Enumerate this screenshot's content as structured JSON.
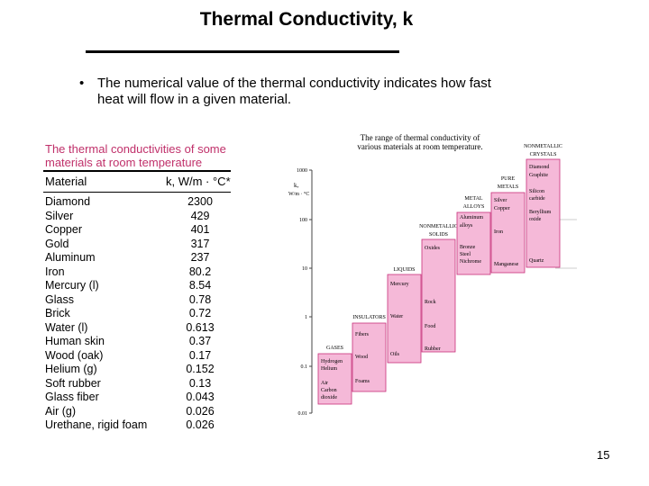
{
  "slide": {
    "title": "Thermal Conductivity, k",
    "bullet": "The numerical value of the thermal conductivity indicates how fast heat will flow in a given material.",
    "page_number": "15"
  },
  "table": {
    "caption_line1": "The thermal conductivities of some",
    "caption_line2": "materials at room temperature",
    "col_material": "Material",
    "col_k": "k, W/m · °C*",
    "rows": [
      {
        "material": "Diamond",
        "k": "2300"
      },
      {
        "material": "Silver",
        "k": "429"
      },
      {
        "material": "Copper",
        "k": "401"
      },
      {
        "material": "Gold",
        "k": "317"
      },
      {
        "material": "Aluminum",
        "k": "237"
      },
      {
        "material": "Iron",
        "k": "80.2"
      },
      {
        "material": "Mercury (l)",
        "k": "8.54"
      },
      {
        "material": "Glass",
        "k": "0.78"
      },
      {
        "material": "Brick",
        "k": "0.72"
      },
      {
        "material": "Water (l)",
        "k": "0.613"
      },
      {
        "material": "Human skin",
        "k": "0.37"
      },
      {
        "material": "Wood (oak)",
        "k": "0.17"
      },
      {
        "material": "Helium (g)",
        "k": "0.152"
      },
      {
        "material": "Soft rubber",
        "k": "0.13"
      },
      {
        "material": "Glass fiber",
        "k": "0.043"
      },
      {
        "material": "Air (g)",
        "k": "0.026"
      },
      {
        "material": "Urethane, rigid foam",
        "k": "0.026"
      }
    ]
  },
  "figure": {
    "title_line1": "The range of thermal conductivity of",
    "title_line2": "various materials at room temperature.",
    "axis_label_line1": "k,",
    "axis_label_line2": "W/m · °C",
    "ticks": [
      "1000",
      "100",
      "10",
      "1",
      "0.1",
      "0.01"
    ],
    "fill_color": "#f5b9d8",
    "border_color": "#c8307a",
    "categories": [
      {
        "heading": [
          "GASES"
        ],
        "items": [
          "Hydrogen",
          "Helium",
          "Air",
          "Carbon",
          "dioxide"
        ]
      },
      {
        "heading": [
          "INSULATORS"
        ],
        "items": [
          "Fibers",
          "Wood",
          "Foams"
        ]
      },
      {
        "heading": [
          "LIQUIDS"
        ],
        "items": [
          "Mercury",
          "Water",
          "Oils"
        ]
      },
      {
        "heading": [
          "NONMETALLIC",
          "SOLIDS"
        ],
        "items": [
          "Oxides",
          "Rock",
          "Food",
          "Rubber"
        ]
      },
      {
        "heading": [
          "METAL",
          "ALLOYS"
        ],
        "items": [
          "Aluminum",
          "alloys",
          "Bronze",
          "Steel",
          "Nichrome"
        ]
      },
      {
        "heading": [
          "PURE",
          "METALS"
        ],
        "items": [
          "Silver",
          "Copper",
          "Iron",
          "Manganese"
        ]
      },
      {
        "heading": [
          "NONMETALLIC",
          "CRYSTALS"
        ],
        "items": [
          "Diamond",
          "Graphite",
          "Silicon",
          "carbide",
          "Beryllium",
          "oxide",
          "Quartz"
        ]
      }
    ]
  }
}
